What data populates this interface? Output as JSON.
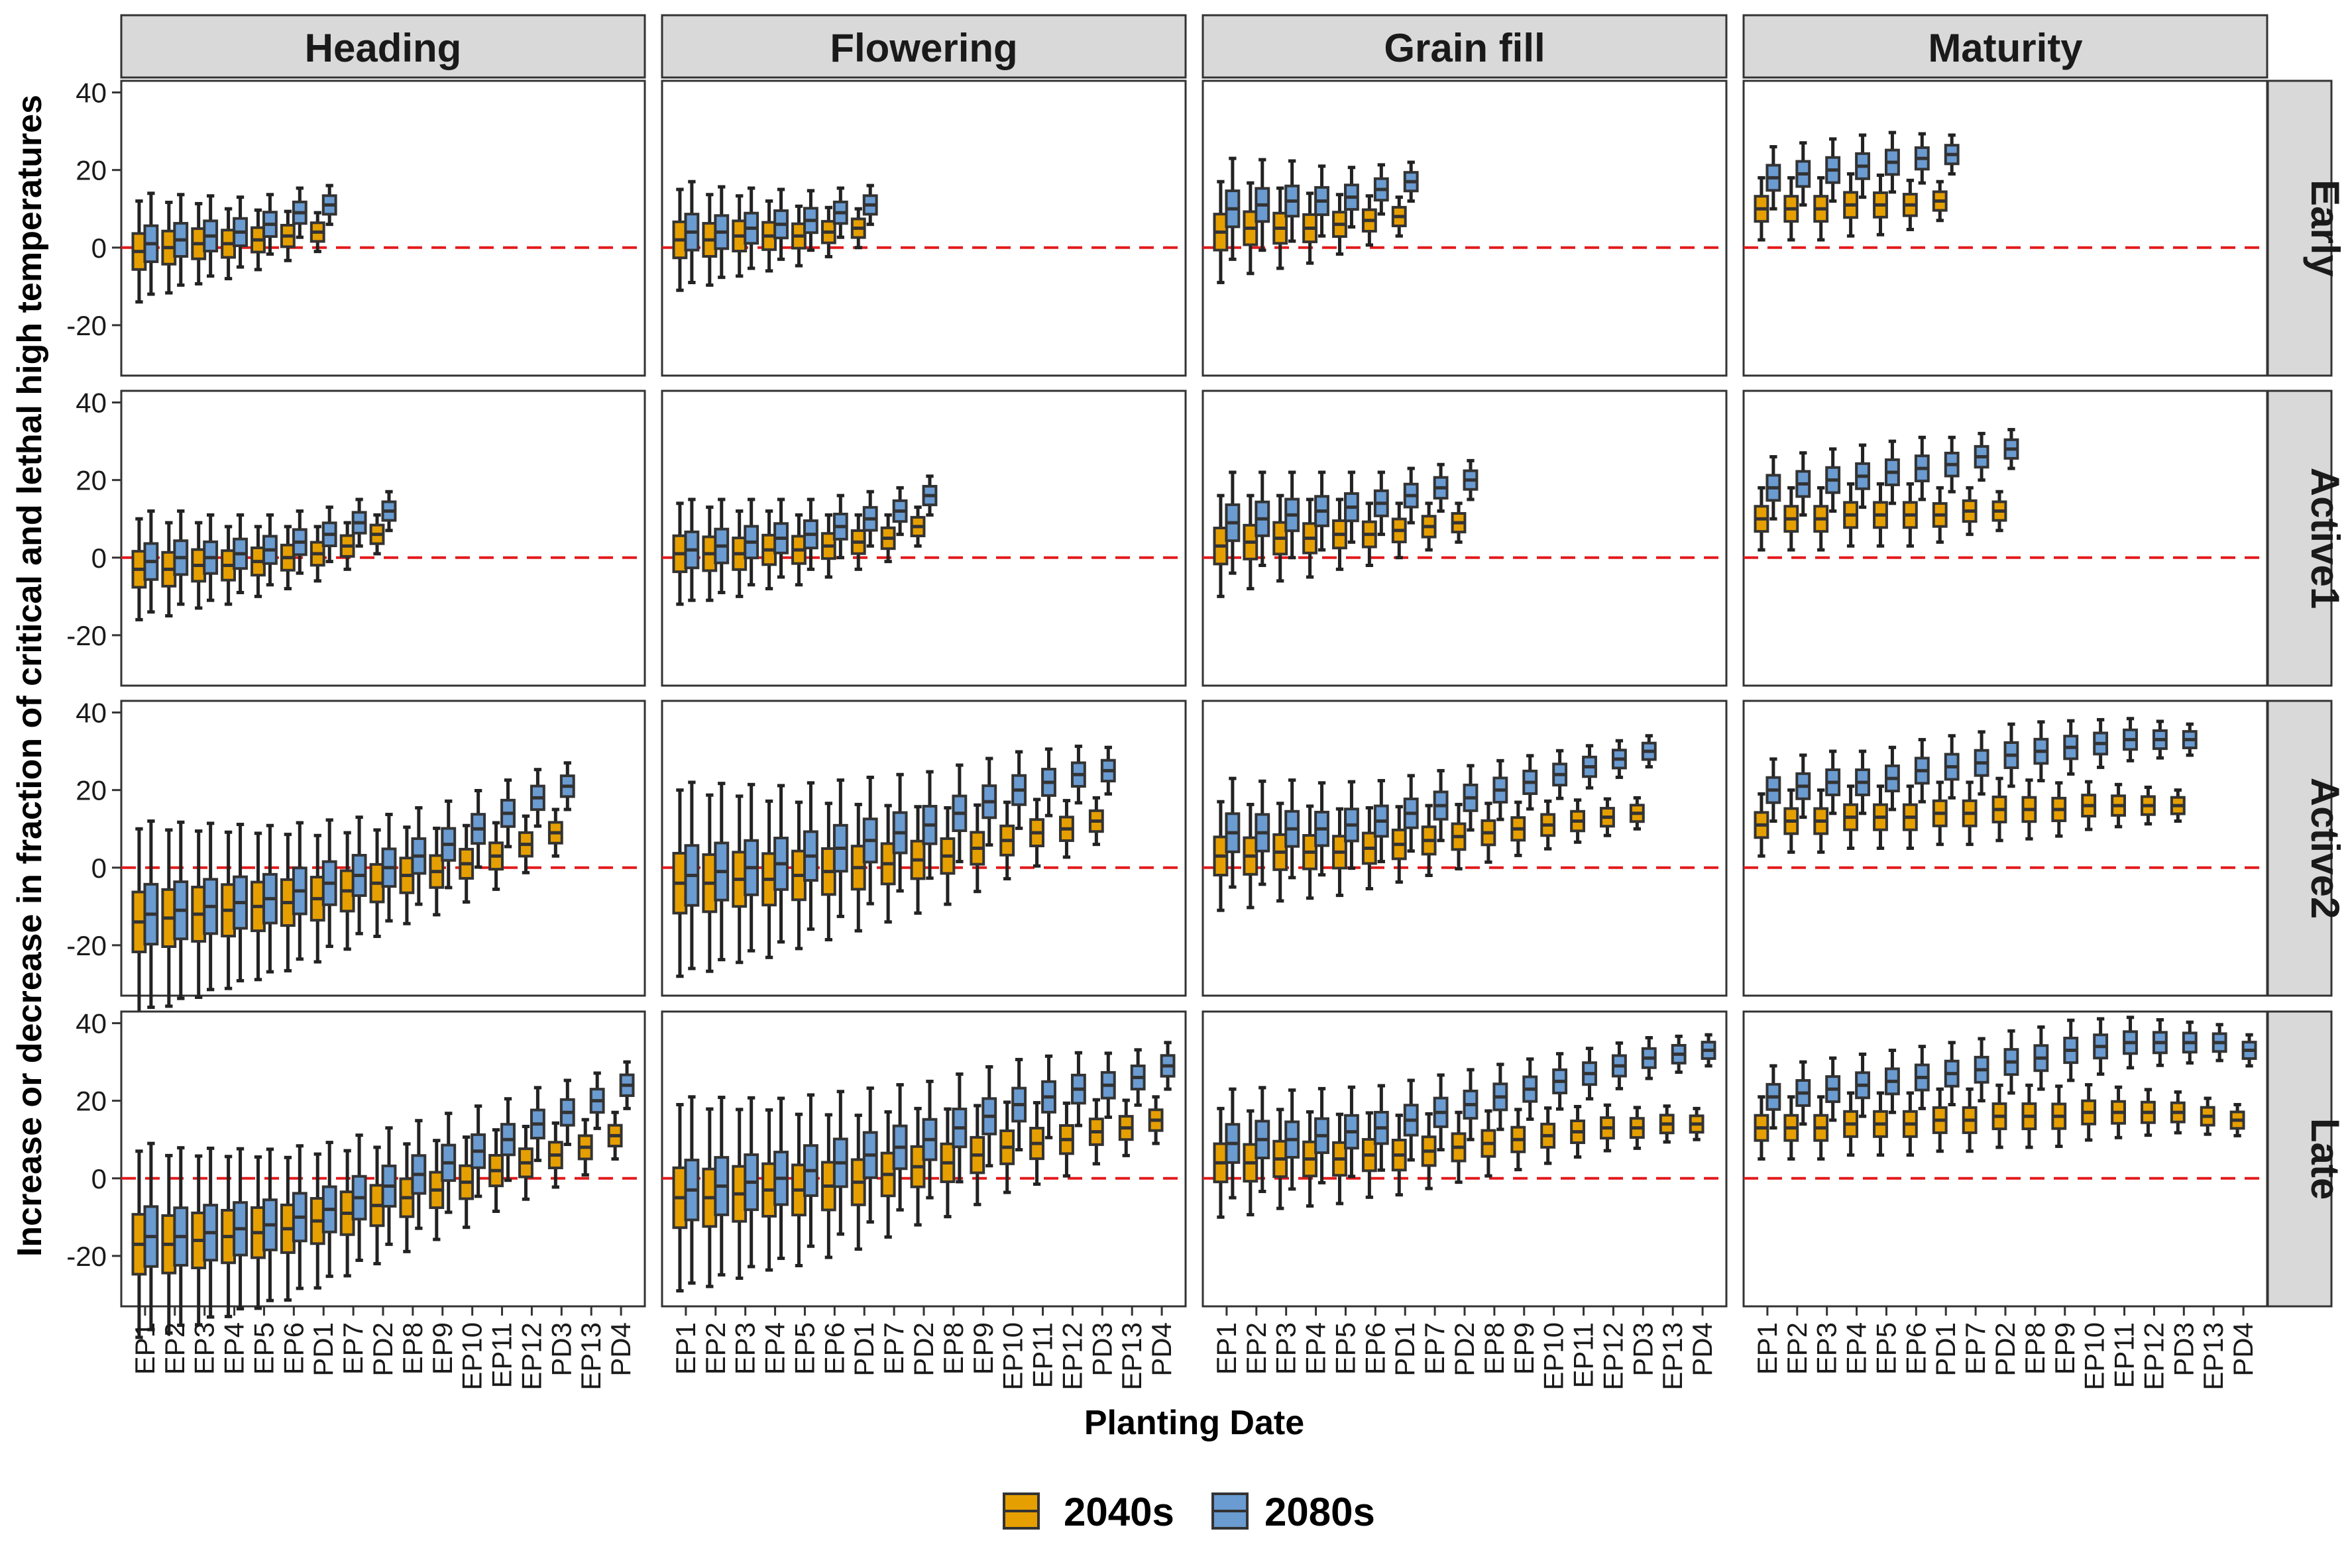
{
  "chart_data": {
    "type": "boxplot",
    "ylabel": "Increase or decrease in fraction of critical and lethal high temperatures",
    "xlabel": "Planting Date",
    "column_facets": [
      "Heading",
      "Flowering",
      "Grain fill",
      "Maturity"
    ],
    "row_facets": [
      "Early",
      "Active1",
      "Active2",
      "Late"
    ],
    "ylim": [
      -33,
      43
    ],
    "yticks": [
      -20,
      0,
      20,
      40
    ],
    "x_categories": [
      "EP1",
      "EP2",
      "EP3",
      "EP4",
      "EP5",
      "EP6",
      "PD1",
      "EP7",
      "PD2",
      "EP8",
      "EP9",
      "EP10",
      "EP11",
      "EP12",
      "PD3",
      "EP13",
      "PD4"
    ],
    "reference_line": 0,
    "legend": {
      "position": "bottom",
      "entries": [
        {
          "name": "2040s",
          "color": "#E69F00"
        },
        {
          "name": "2080s",
          "color": "#6A9BD1"
        }
      ]
    },
    "colors": {
      "2040s": "#E69F00",
      "2080s": "#6A9BD1",
      "reference": "#E31A1C",
      "strip": "#D9D9D9"
    },
    "series_note": "Values are approximate box medians per planting date; categories per row: Early 7, Active1 9, Active2 15, Late 17.",
    "panels": {
      "Early": {
        "Heading": {
          "2040s": [
            -1,
            0,
            1,
            1,
            2,
            3,
            4
          ],
          "2080s": [
            1,
            2,
            3,
            4,
            6,
            9,
            11
          ]
        },
        "Flowering": {
          "2040s": [
            2,
            2,
            3,
            3,
            3,
            4,
            5
          ],
          "2080s": [
            4,
            4,
            5,
            6,
            7,
            9,
            11
          ]
        },
        "Grain fill": {
          "2040s": [
            4,
            5,
            5,
            5,
            6,
            7,
            8
          ],
          "2080s": [
            10,
            11,
            12,
            12,
            13,
            15,
            17
          ]
        },
        "Maturity": {
          "2040s": [
            10,
            10,
            10,
            11,
            11,
            11,
            12
          ],
          "2080s": [
            18,
            19,
            20,
            21,
            22,
            23,
            24
          ]
        }
      },
      "Active1": {
        "Heading": {
          "2040s": [
            -3,
            -3,
            -2,
            -2,
            -1,
            0,
            1,
            3,
            6
          ],
          "2080s": [
            -1,
            0,
            0,
            1,
            2,
            4,
            6,
            9,
            12
          ]
        },
        "Flowering": {
          "2040s": [
            1,
            1,
            1,
            2,
            2,
            3,
            4,
            5,
            8
          ],
          "2080s": [
            2,
            3,
            4,
            5,
            6,
            8,
            10,
            12,
            16
          ]
        },
        "Grain fill": {
          "2040s": [
            3,
            4,
            5,
            5,
            6,
            6,
            7,
            8,
            9
          ],
          "2080s": [
            9,
            10,
            11,
            12,
            13,
            14,
            16,
            18,
            20
          ]
        },
        "Maturity": {
          "2040s": [
            10,
            10,
            10,
            11,
            11,
            11,
            11,
            12,
            12
          ],
          "2080s": [
            18,
            19,
            20,
            21,
            22,
            23,
            24,
            26,
            28
          ]
        }
      },
      "Active2": {
        "Heading": {
          "2040s": [
            -14,
            -13,
            -12,
            -11,
            -10,
            -9,
            -8,
            -6,
            -4,
            -2,
            -1,
            1,
            3,
            6,
            9
          ],
          "2080s": [
            -12,
            -11,
            -10,
            -9,
            -8,
            -6,
            -4,
            -2,
            0,
            3,
            6,
            10,
            14,
            18,
            21
          ]
        },
        "Flowering": {
          "2040s": [
            -4,
            -4,
            -3,
            -3,
            -2,
            -1,
            0,
            1,
            2,
            3,
            5,
            7,
            9,
            10,
            12
          ],
          "2080s": [
            -2,
            -1,
            0,
            1,
            3,
            5,
            7,
            9,
            11,
            14,
            17,
            20,
            22,
            24,
            25
          ]
        },
        "Grain fill": {
          "2040s": [
            3,
            3,
            4,
            4,
            4,
            5,
            6,
            7,
            8,
            9,
            10,
            11,
            12,
            13,
            14
          ],
          "2080s": [
            9,
            9,
            10,
            10,
            11,
            12,
            14,
            16,
            18,
            20,
            22,
            24,
            26,
            28,
            30
          ]
        },
        "Maturity": {
          "2040s": [
            11,
            12,
            12,
            13,
            13,
            13,
            14,
            14,
            15,
            15,
            15,
            16,
            16,
            16,
            16
          ],
          "2080s": [
            20,
            21,
            22,
            22,
            23,
            25,
            26,
            27,
            29,
            30,
            31,
            32,
            33,
            33,
            33
          ]
        }
      },
      "Late": {
        "Heading": {
          "2040s": [
            -17,
            -17,
            -16,
            -15,
            -14,
            -13,
            -11,
            -9,
            -7,
            -5,
            -3,
            -1,
            2,
            4,
            6,
            8,
            11
          ],
          "2080s": [
            -15,
            -15,
            -14,
            -13,
            -12,
            -10,
            -8,
            -5,
            -2,
            1,
            4,
            7,
            10,
            14,
            17,
            20,
            24
          ]
        },
        "Flowering": {
          "2040s": [
            -5,
            -5,
            -4,
            -3,
            -3,
            -2,
            -1,
            1,
            3,
            4,
            6,
            8,
            9,
            10,
            12,
            13,
            15
          ],
          "2080s": [
            -3,
            -2,
            -1,
            0,
            2,
            4,
            6,
            8,
            10,
            13,
            16,
            19,
            21,
            23,
            24,
            26,
            29
          ]
        },
        "Grain fill": {
          "2040s": [
            4,
            4,
            5,
            5,
            5,
            6,
            6,
            7,
            8,
            9,
            10,
            11,
            12,
            13,
            13,
            14,
            14
          ],
          "2080s": [
            9,
            10,
            10,
            11,
            12,
            13,
            15,
            17,
            19,
            21,
            23,
            25,
            27,
            29,
            31,
            32,
            33
          ]
        },
        "Maturity": {
          "2040s": [
            13,
            13,
            13,
            14,
            14,
            14,
            15,
            15,
            16,
            16,
            16,
            17,
            17,
            17,
            17,
            16,
            15
          ],
          "2080s": [
            21,
            22,
            23,
            24,
            25,
            26,
            27,
            28,
            30,
            31,
            33,
            34,
            35,
            35,
            35,
            35,
            33
          ]
        }
      }
    }
  }
}
